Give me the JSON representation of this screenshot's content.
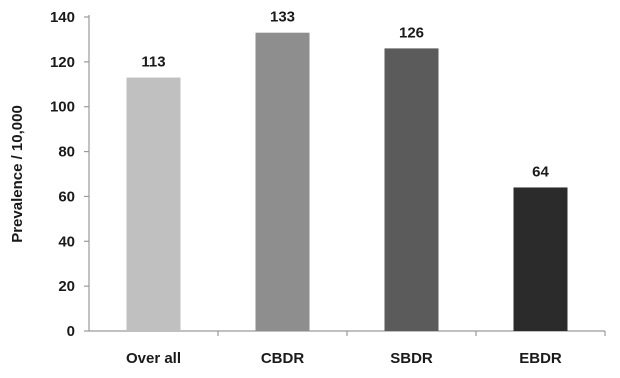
{
  "chart_data": {
    "type": "bar",
    "title": "",
    "xlabel": "",
    "ylabel": "Prevalence / 10,000",
    "ylim": [
      0,
      140
    ],
    "yticks": [
      0,
      20,
      40,
      60,
      80,
      100,
      120,
      140
    ],
    "categories": [
      "Over all",
      "CBDR",
      "SBDR",
      "EBDR"
    ],
    "values": [
      113,
      133,
      126,
      64
    ],
    "value_labels": [
      "113",
      "133",
      "126",
      "64"
    ],
    "bar_colors": [
      "#c0c0c0",
      "#8e8e8e",
      "#5b5b5b",
      "#2b2b2b"
    ],
    "axis_color": "#9a9a9a",
    "grid": false,
    "legend": "none"
  }
}
